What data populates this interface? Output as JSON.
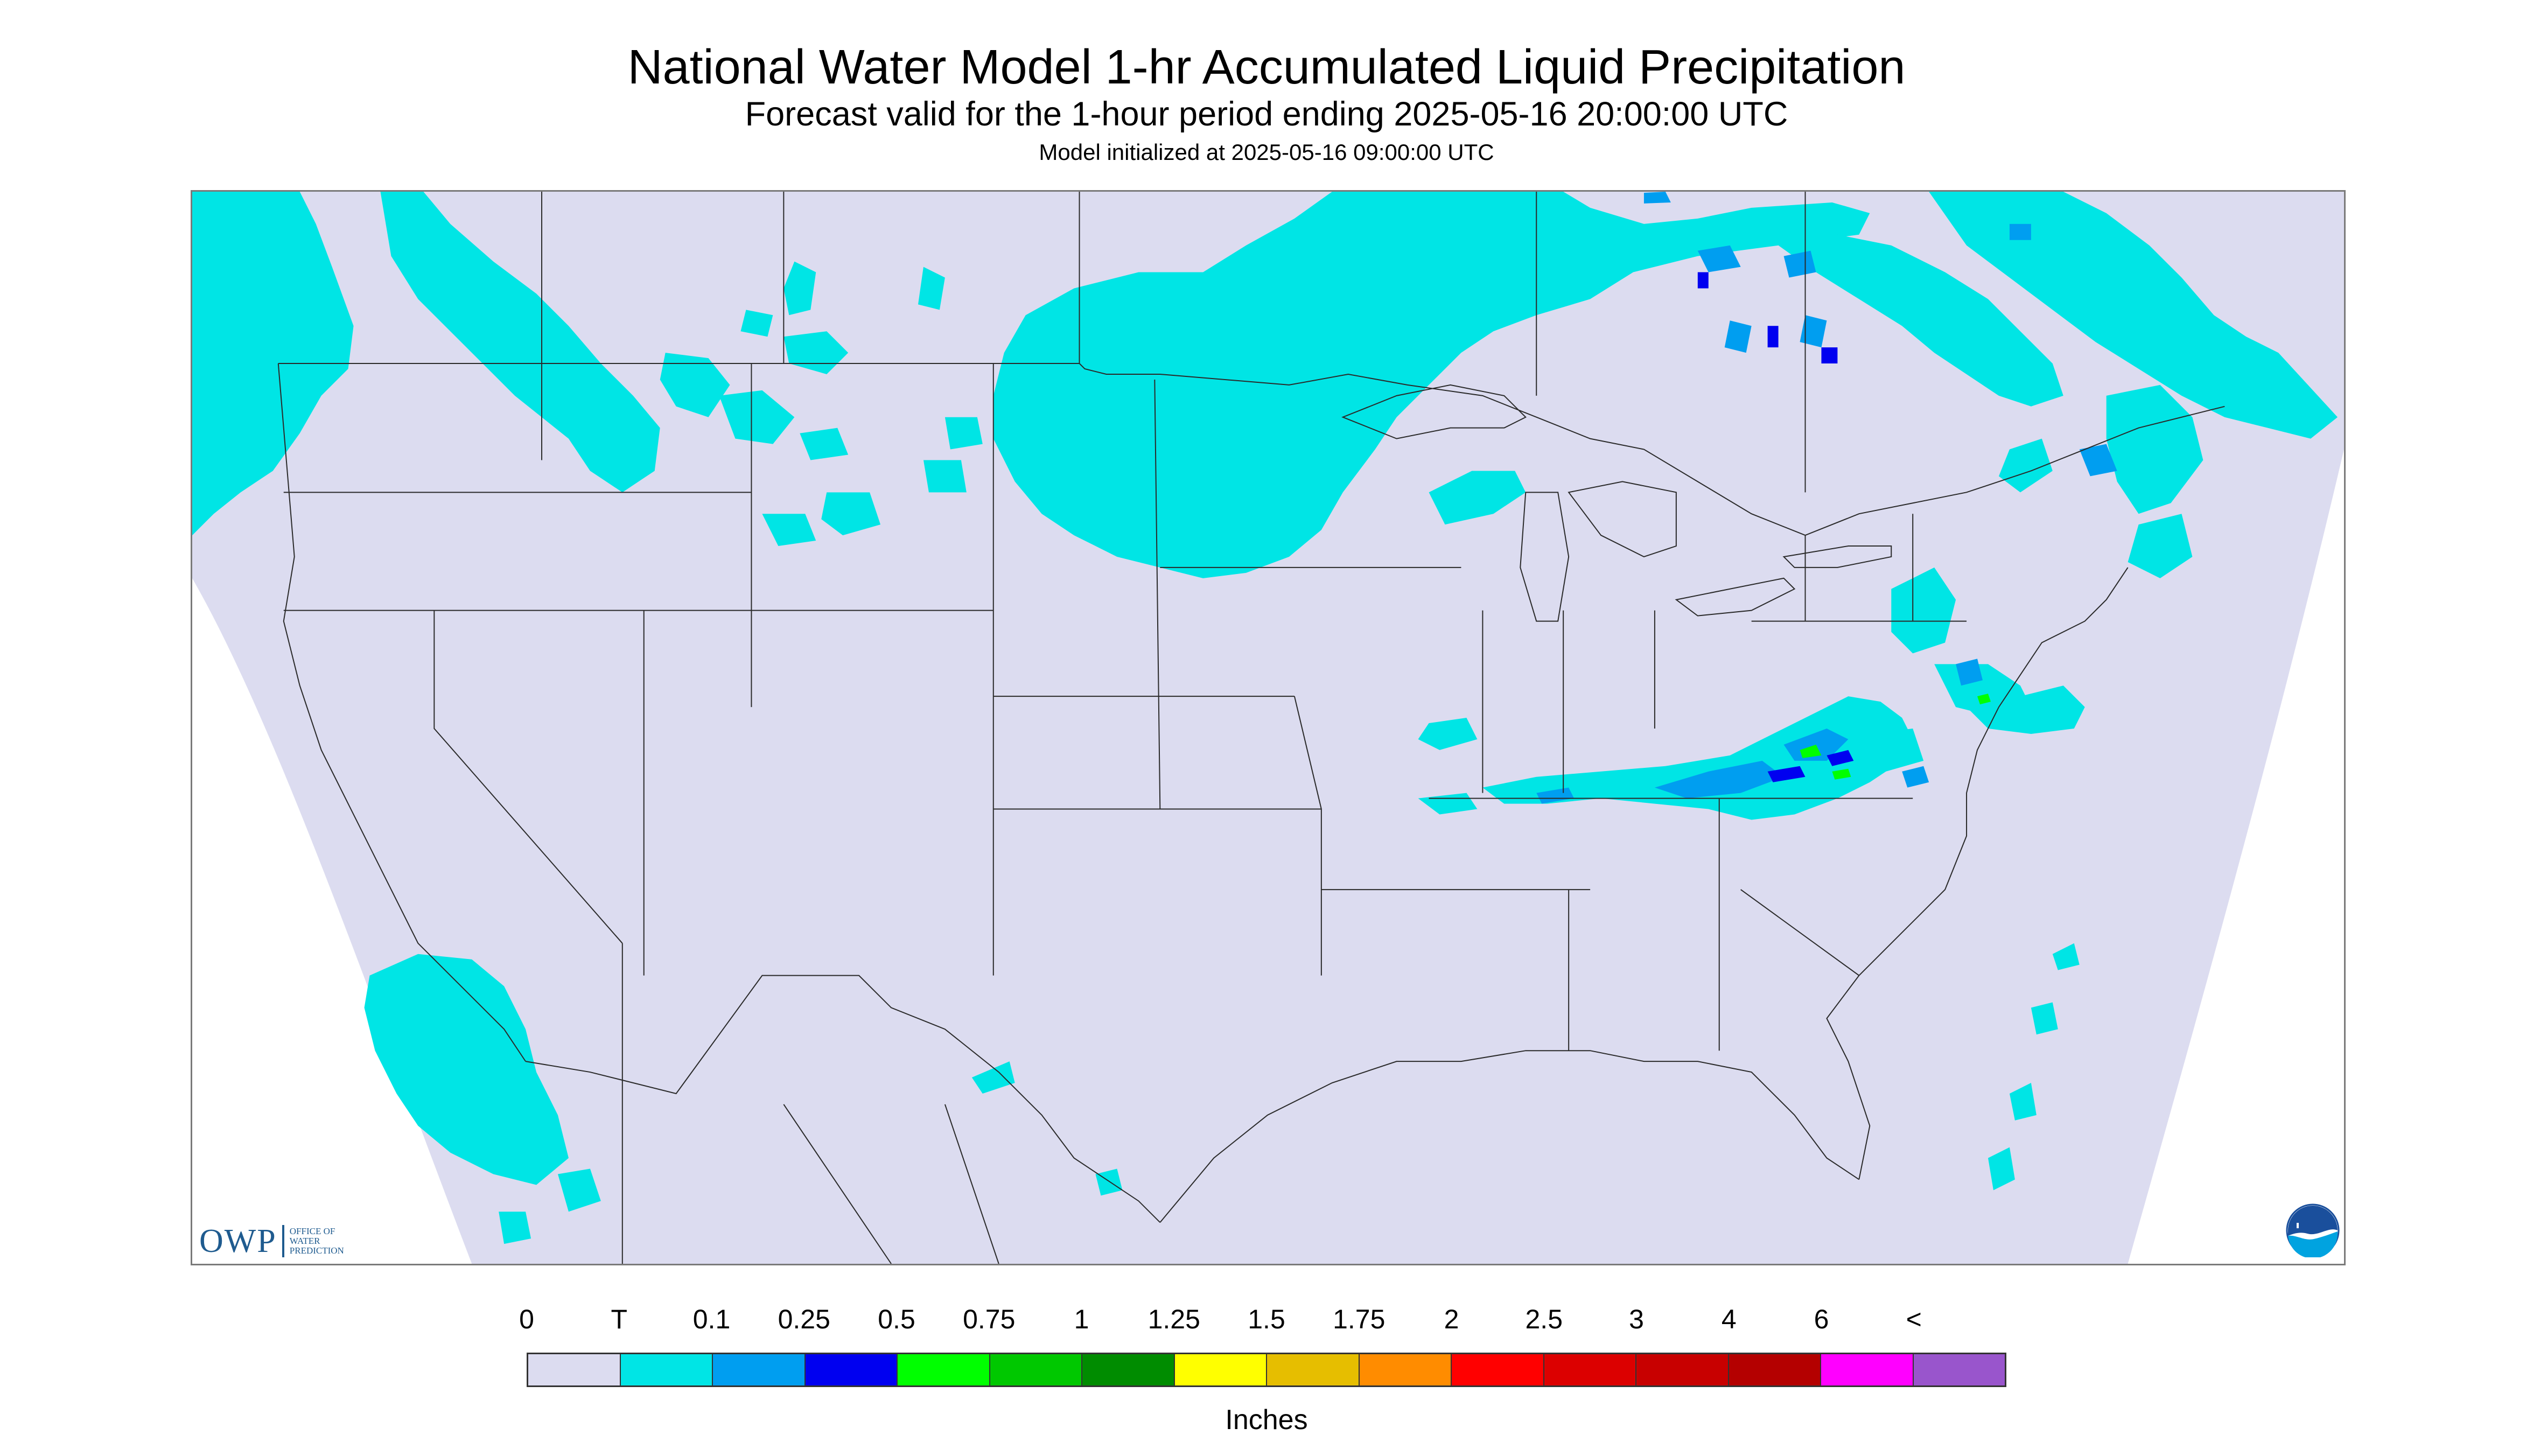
{
  "title": "National Water Model 1-hr Accumulated Liquid Precipitation",
  "subtitle": "Forecast valid for the 1-hour period ending 2025-05-16 20:00:00 UTC",
  "init_text": "Model initialized at 2025-05-16 09:00:00 UTC",
  "logos": {
    "owp_abbrev": "OWP",
    "owp_line1": "OFFICE OF",
    "owp_line2": "WATER",
    "owp_line3": "PREDICTION",
    "noaa_icon": "noaa-logo-icon"
  },
  "colors": {
    "background_domain": "#dcdcf0",
    "outside_domain": "#ffffff",
    "trace": "#00e5e5",
    "tenth": "#009ef0",
    "quarter": "#0000f0",
    "border_lines": "#2a2a2a"
  },
  "legend": {
    "labels": [
      "0",
      "T",
      "0.1",
      "0.25",
      "0.5",
      "0.75",
      "1",
      "1.25",
      "1.5",
      "1.75",
      "2",
      "2.5",
      "3",
      "4",
      "6",
      "<"
    ],
    "colors": [
      "#dcdcf0",
      "#00e5e5",
      "#009ef0",
      "#0000f0",
      "#00ff00",
      "#00c800",
      "#008c00",
      "#ffff00",
      "#e6be00",
      "#ff8c00",
      "#ff0000",
      "#dc0000",
      "#c80000",
      "#b40000",
      "#ff00ff",
      "#9955cc"
    ],
    "units": "Inches"
  }
}
